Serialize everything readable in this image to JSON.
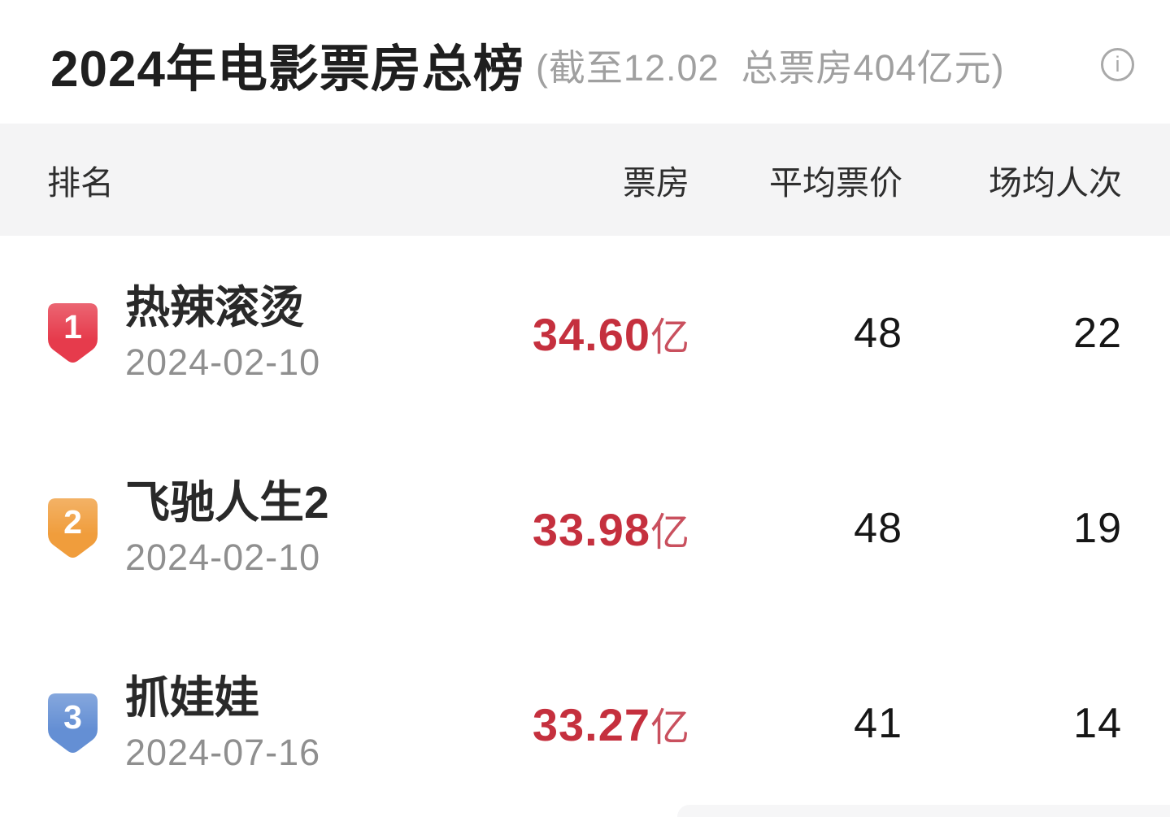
{
  "page": {
    "title": "2024年电影票房总榜",
    "subtitle": "(截至12.02  总票房404亿元)",
    "info_icon": "i",
    "total_box_office": "404亿元",
    "as_of_date": "12.02"
  },
  "table": {
    "headers": {
      "rank": "排名",
      "box_office": "票房",
      "avg_price": "平均票价",
      "avg_attendance": "场均人次"
    },
    "rows": [
      {
        "rank": "1",
        "badge_color": "#e63b4c",
        "title": "热辣滚烫",
        "release_date": "2024-02-10",
        "box_office": "34.60",
        "unit": "亿",
        "avg_price": "48",
        "avg_attendance": "22"
      },
      {
        "rank": "2",
        "badge_color": "#f09d3c",
        "title": "飞驰人生2",
        "release_date": "2024-02-10",
        "box_office": "33.98",
        "unit": "亿",
        "avg_price": "48",
        "avg_attendance": "19"
      },
      {
        "rank": "3",
        "badge_color": "#648fd4",
        "title": "抓娃娃",
        "release_date": "2024-07-16",
        "box_office": "33.27",
        "unit": "亿",
        "avg_price": "41",
        "avg_attendance": "14"
      }
    ]
  },
  "colors": {
    "accent_red": "#c5303e",
    "header_band_bg": "#f4f4f5",
    "badge_rank1": "#e63b4c",
    "badge_rank2": "#f09d3c",
    "badge_rank3": "#648fd4",
    "subtitle_gray": "#a0a0a0"
  }
}
